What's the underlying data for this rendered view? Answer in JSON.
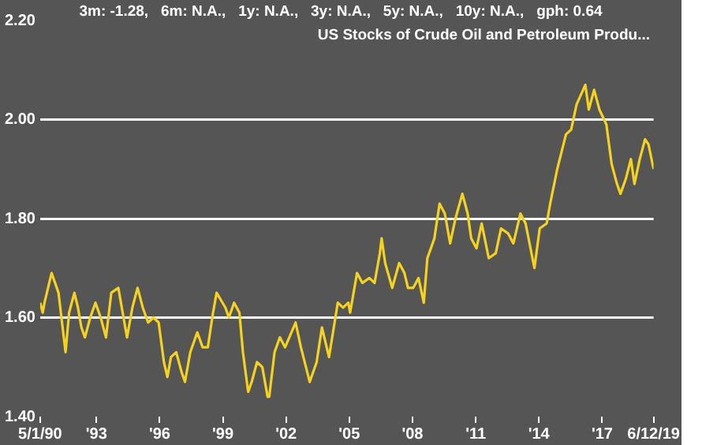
{
  "chart_data": {
    "type": "line",
    "title": "US Stocks of Crude Oil and Petroleum Produ...",
    "subtitle": "3m: -1.28,   6m: N.A.,   1y: N.A.,   3y: N.A.,   5y: N.A.,   10y: N.A.,   gph: 0.64",
    "x": [
      "1990-05-01",
      "1990-06",
      "1990-07",
      "1990-09",
      "1990-11",
      "1990-12",
      "1991-03",
      "1991-05",
      "1991-07",
      "1991-09",
      "1991-12",
      "1992-02",
      "1992-04",
      "1992-06",
      "1992-09",
      "1992-12",
      "1993-03",
      "1993-06",
      "1993-09",
      "1994-01",
      "1994-04",
      "1994-06",
      "1994-09",
      "1994-12",
      "1995-03",
      "1995-06",
      "1995-09",
      "1995-12",
      "1996-03",
      "1996-05",
      "1996-07",
      "1996-10",
      "1997-01",
      "1997-03",
      "1997-06",
      "1997-10",
      "1998-01",
      "1998-04",
      "1998-07",
      "1998-09",
      "1999-02",
      "1999-04",
      "1999-07",
      "1999-10",
      "1999-12",
      "2000-03",
      "2000-05",
      "2000-08",
      "2000-11",
      "2001-02",
      "2001-03",
      "2001-06",
      "2001-09",
      "2001-12",
      "2002-06",
      "2002-09",
      "2003-02",
      "2003-06",
      "2003-09",
      "2004-01",
      "2004-06",
      "2004-09",
      "2004-12",
      "2005-01",
      "2005-05",
      "2005-08",
      "2005-12",
      "2006-03",
      "2006-06",
      "2006-07",
      "2006-09",
      "2007-01",
      "2007-05",
      "2007-08",
      "2007-10",
      "2008-01",
      "2008-04",
      "2008-07",
      "2008-09",
      "2009-01",
      "2009-04",
      "2009-07",
      "2009-10",
      "2010-01",
      "2010-05",
      "2010-08",
      "2010-10",
      "2011-01",
      "2011-04",
      "2011-08",
      "2011-12",
      "2012-03",
      "2012-07",
      "2012-10",
      "2013-02",
      "2013-05",
      "2013-10",
      "2014-01",
      "2014-05",
      "2014-07",
      "2014-11",
      "2015-04",
      "2015-07",
      "2015-10",
      "2016-03",
      "2016-05",
      "2016-08",
      "2016-11",
      "2017-03",
      "2017-06",
      "2017-09",
      "2017-11",
      "2018-02",
      "2018-05",
      "2018-07",
      "2018-10",
      "2019-01",
      "2019-03",
      "2019-06-12"
    ],
    "series": [
      {
        "color": "#f5d21f",
        "values": [
          1.63,
          1.61,
          1.63,
          1.66,
          1.69,
          1.68,
          1.65,
          1.59,
          1.53,
          1.61,
          1.65,
          1.62,
          1.58,
          1.56,
          1.6,
          1.63,
          1.6,
          1.56,
          1.65,
          1.66,
          1.6,
          1.56,
          1.62,
          1.66,
          1.62,
          1.59,
          1.6,
          1.59,
          1.51,
          1.48,
          1.52,
          1.53,
          1.49,
          1.47,
          1.53,
          1.57,
          1.54,
          1.54,
          1.61,
          1.65,
          1.62,
          1.6,
          1.63,
          1.61,
          1.53,
          1.45,
          1.47,
          1.51,
          1.5,
          1.44,
          1.44,
          1.53,
          1.56,
          1.54,
          1.59,
          1.54,
          1.47,
          1.51,
          1.58,
          1.52,
          1.63,
          1.62,
          1.63,
          1.61,
          1.69,
          1.67,
          1.68,
          1.67,
          1.73,
          1.76,
          1.71,
          1.66,
          1.71,
          1.69,
          1.66,
          1.66,
          1.68,
          1.63,
          1.72,
          1.76,
          1.83,
          1.81,
          1.75,
          1.8,
          1.85,
          1.81,
          1.76,
          1.74,
          1.79,
          1.72,
          1.73,
          1.78,
          1.77,
          1.75,
          1.81,
          1.79,
          1.7,
          1.78,
          1.79,
          1.83,
          1.9,
          1.97,
          1.98,
          2.03,
          2.07,
          2.02,
          2.06,
          2.02,
          1.99,
          1.91,
          1.87,
          1.85,
          1.88,
          1.92,
          1.87,
          1.92,
          1.96,
          1.95,
          1.9
        ]
      }
    ],
    "xlim": [
      "1990-05-01",
      "2019-06-12"
    ],
    "xticks": [
      {
        "value": "1990-05-01",
        "label": "5/1/90"
      },
      {
        "value": "1993-01-01",
        "label": "'93"
      },
      {
        "value": "1996-01-01",
        "label": "'96"
      },
      {
        "value": "1999-01-01",
        "label": "'99"
      },
      {
        "value": "2002-01-01",
        "label": "'02"
      },
      {
        "value": "2005-01-01",
        "label": "'05"
      },
      {
        "value": "2008-01-01",
        "label": "'08"
      },
      {
        "value": "2011-01-01",
        "label": "'11"
      },
      {
        "value": "2014-01-01",
        "label": "'14"
      },
      {
        "value": "2017-01-01",
        "label": "'17"
      },
      {
        "value": "2019-06-12",
        "label": "6/12/19"
      }
    ],
    "ylim": [
      1.4,
      2.2
    ],
    "yticks": [
      {
        "value": 1.4,
        "label": "1.40"
      },
      {
        "value": 1.6,
        "label": "1.60"
      },
      {
        "value": 1.8,
        "label": "1.80"
      },
      {
        "value": 2.0,
        "label": "2.00"
      },
      {
        "value": 2.2,
        "label": "2.20"
      }
    ],
    "grid": "y",
    "legend": false,
    "marker": "none",
    "line_style": "solid"
  }
}
